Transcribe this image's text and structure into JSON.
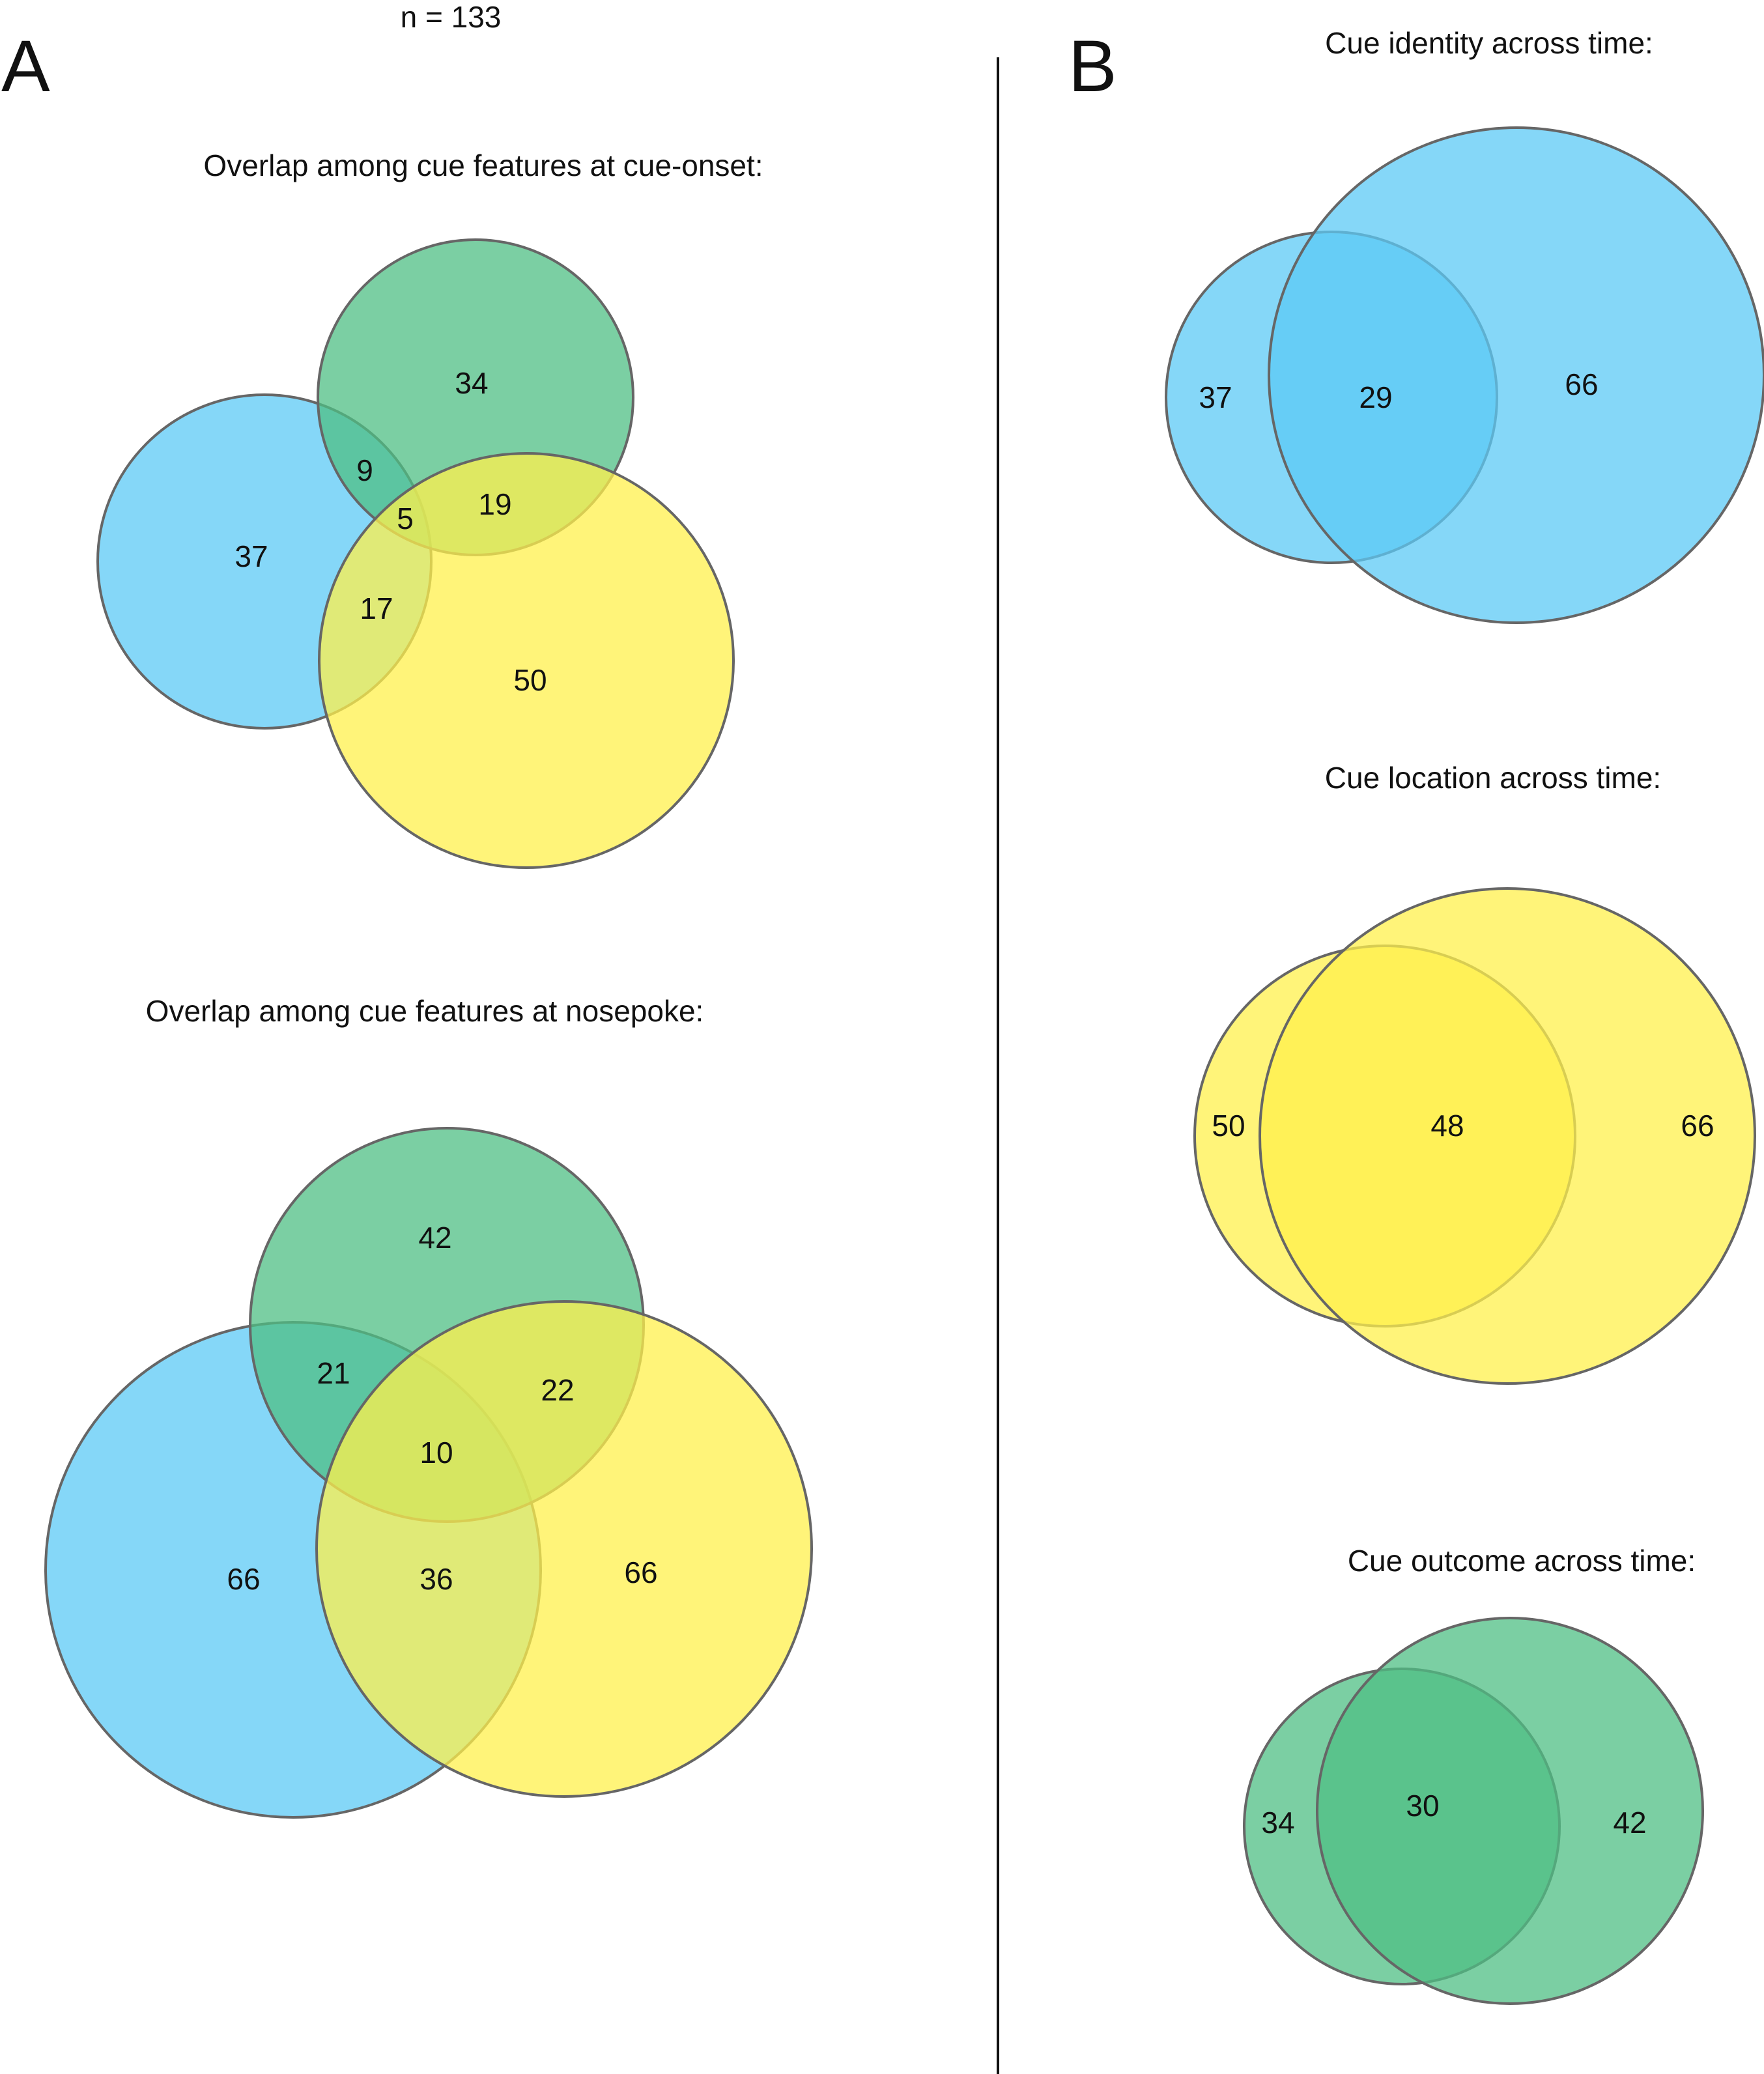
{
  "sample_size": "n = 133",
  "colors": {
    "blue": "#5ccaf6",
    "green": "#4fbf84",
    "yellow": "#fff04c",
    "stroke": "#666666"
  },
  "panel_a": {
    "label": "A",
    "cue_onset": {
      "title": "Overlap among cue features at cue-onset:",
      "regions": {
        "blue_only": "37",
        "green_only": "34",
        "yellow_only": "50",
        "blue_green": "9",
        "green_yellow": "19",
        "blue_yellow": "17",
        "all_three": "5"
      }
    },
    "nosepoke": {
      "title": "Overlap among cue features at nosepoke:",
      "regions": {
        "blue_only": "66",
        "green_only": "42",
        "yellow_only": "66",
        "blue_green": "21",
        "green_yellow": "22",
        "blue_yellow": "36",
        "all_three": "10"
      }
    }
  },
  "panel_b": {
    "label": "B",
    "identity": {
      "title": "Cue identity across time:",
      "left_only": "37",
      "overlap": "29",
      "right_only": "66",
      "color": "blue"
    },
    "location": {
      "title": "Cue location across time:",
      "left_only": "50",
      "overlap": "48",
      "right_only": "66",
      "color": "yellow"
    },
    "outcome": {
      "title": "Cue outcome across time:",
      "left_only": "34",
      "overlap": "30",
      "right_only": "42",
      "color": "green"
    }
  }
}
